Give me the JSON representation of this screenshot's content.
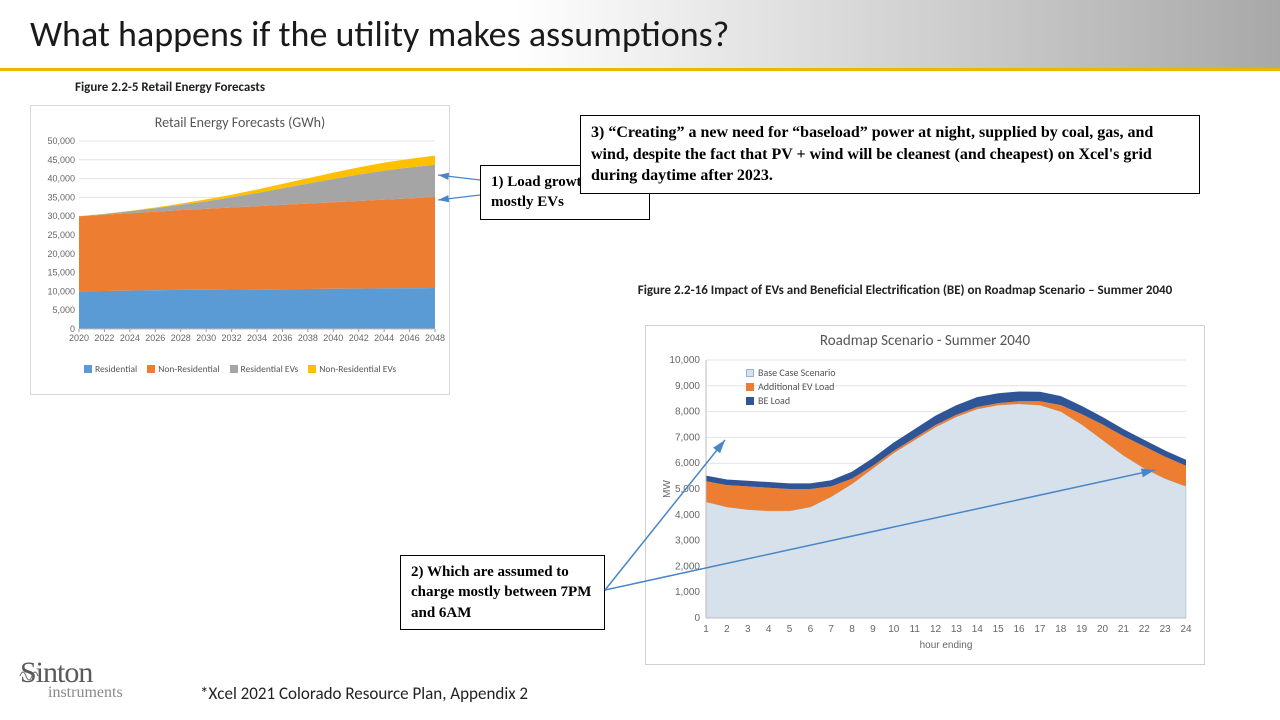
{
  "title": "What happens if the utility makes assumptions?",
  "callout1": "1) Load growth is mostly EVs",
  "callout2": "2) Which are assumed to charge mostly between 7PM and 6AM",
  "callout3": "3) “Creating” a new need for “baseload” power at night, supplied by coal, gas, and wind, despite the fact that PV + wind will be cleanest (and cheapest) on Xcel's grid during daytime after 2023.",
  "footnote": "*Xcel 2021 Colorado Resource Plan, Appendix 2",
  "logo": {
    "name": "Sinton",
    "sub": "instruments"
  },
  "colors": {
    "residential": "#5b9bd5",
    "nonresidential": "#ed7d31",
    "residential_ev": "#a5a5a5",
    "nonresidential_ev": "#ffc000",
    "base_case": "#d6e1ec",
    "ev_load": "#ed7d31",
    "be_load": "#2f5597",
    "grid": "#e3e3e3",
    "arrow": "#4a86c5"
  },
  "chart1": {
    "type": "stacked-area",
    "caption": "Figure 2.2-5 Retail Energy Forecasts",
    "title": "Retail Energy Forecasts (GWh)",
    "years": [
      2020,
      2022,
      2024,
      2026,
      2028,
      2030,
      2032,
      2034,
      2036,
      2038,
      2040,
      2042,
      2044,
      2046,
      2048
    ],
    "ylim": [
      0,
      50000
    ],
    "ytick_step": 5000,
    "series": [
      {
        "name": "Residential",
        "values": [
          10000,
          10100,
          10200,
          10300,
          10400,
          10450,
          10500,
          10550,
          10600,
          10650,
          10700,
          10750,
          10800,
          10850,
          10900
        ]
      },
      {
        "name": "Non-Residential",
        "values": [
          20000,
          20300,
          20600,
          20900,
          21200,
          21500,
          21800,
          22100,
          22400,
          22700,
          23000,
          23300,
          23600,
          23900,
          24200
        ]
      },
      {
        "name": "Residential EVs",
        "values": [
          0,
          200,
          500,
          900,
          1400,
          2000,
          2700,
          3500,
          4400,
          5300,
          6200,
          7000,
          7700,
          8200,
          8600
        ]
      },
      {
        "name": "Non-Residential EVs",
        "values": [
          0,
          50,
          120,
          220,
          350,
          520,
          720,
          950,
          1200,
          1450,
          1700,
          1950,
          2150,
          2300,
          2400
        ]
      }
    ]
  },
  "chart2": {
    "type": "stacked-area",
    "caption": "Figure 2.2-16 Impact of EVs and Beneficial Electrification (BE) on Roadmap Scenario – Summer 2040",
    "title": "Roadmap Scenario - Summer 2040",
    "xlabel": "hour ending",
    "ylabel": "MW",
    "hours": [
      1,
      2,
      3,
      4,
      5,
      6,
      7,
      8,
      9,
      10,
      11,
      12,
      13,
      14,
      15,
      16,
      17,
      18,
      19,
      20,
      21,
      22,
      23,
      24
    ],
    "ylim": [
      0,
      10000
    ],
    "ytick_step": 1000,
    "series": [
      {
        "name": "Base Case Scenario",
        "values": [
          4500,
          4300,
          4200,
          4150,
          4150,
          4300,
          4700,
          5200,
          5800,
          6400,
          6900,
          7400,
          7800,
          8100,
          8250,
          8300,
          8250,
          8000,
          7500,
          6900,
          6300,
          5800,
          5400,
          5100
        ]
      },
      {
        "name": "Additional EV Load",
        "values": [
          800,
          850,
          900,
          900,
          850,
          700,
          400,
          200,
          100,
          80,
          80,
          80,
          80,
          80,
          80,
          100,
          150,
          250,
          400,
          600,
          750,
          850,
          850,
          800
        ]
      },
      {
        "name": "BE Load",
        "values": [
          200,
          200,
          200,
          200,
          200,
          200,
          220,
          250,
          280,
          300,
          320,
          340,
          350,
          360,
          360,
          360,
          350,
          330,
          300,
          270,
          250,
          230,
          220,
          210
        ]
      }
    ]
  }
}
